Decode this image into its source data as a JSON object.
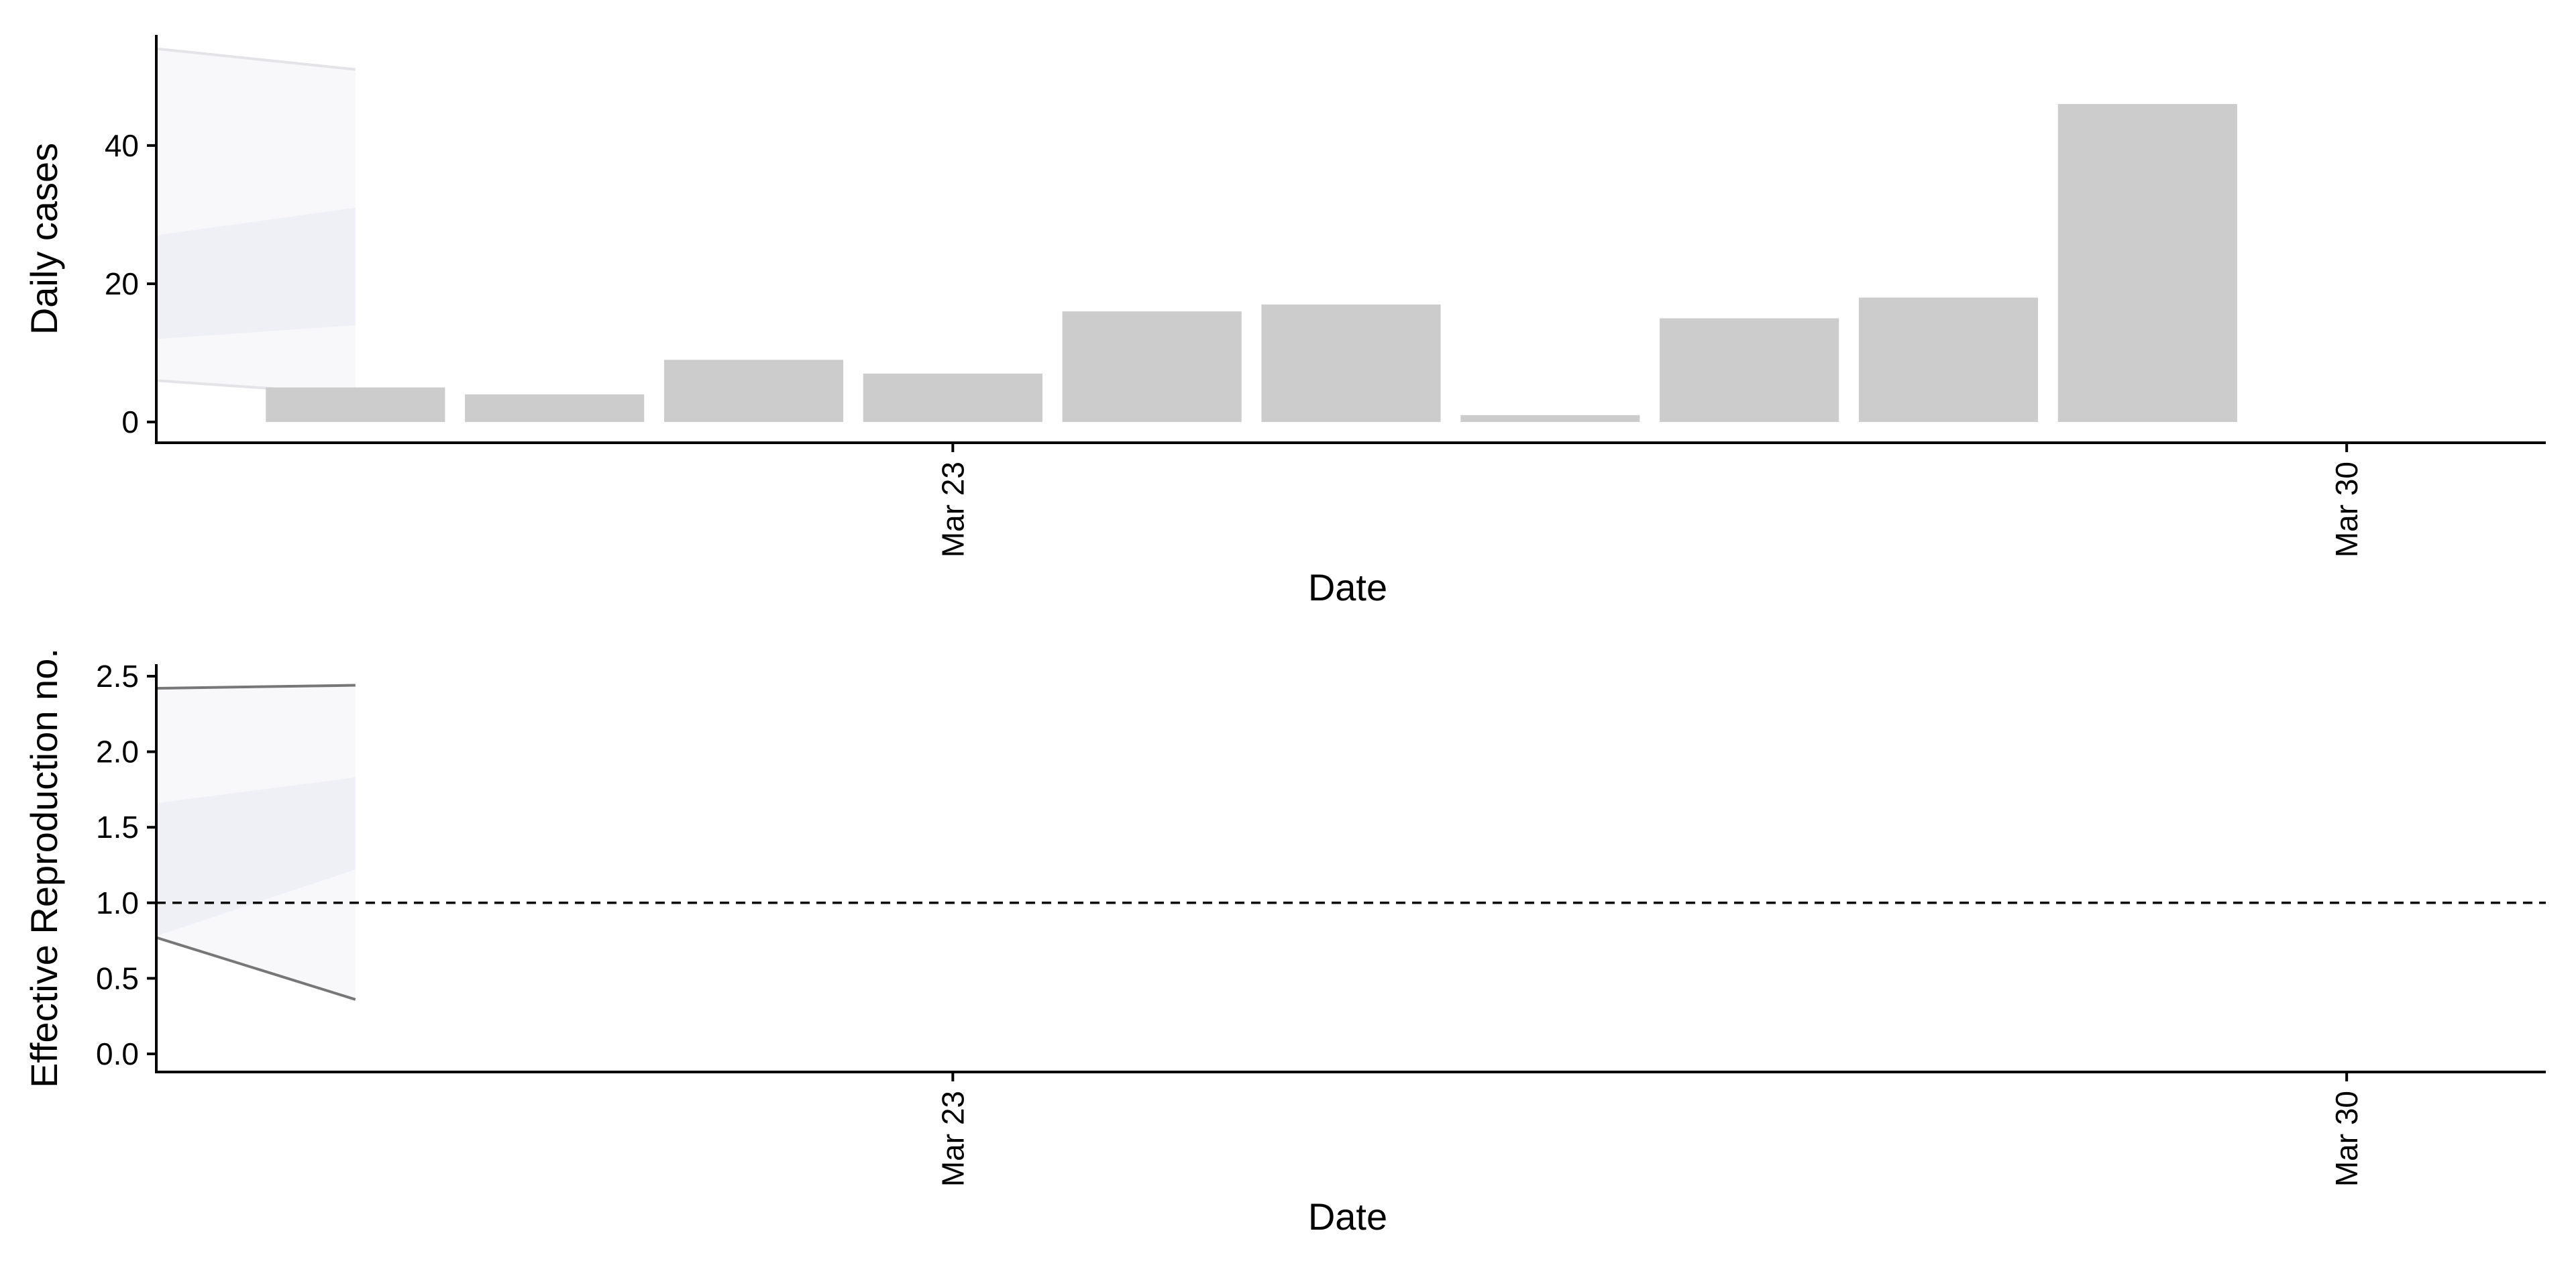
{
  "chart_data": [
    {
      "type": "bar",
      "xlabel": "Date",
      "ylabel": "Daily cases",
      "x_tick_labels": [
        {
          "date": "2020-03-23",
          "label": "Mar 23"
        },
        {
          "date": "2020-03-30",
          "label": "Mar 30"
        }
      ],
      "x_range": [
        "2020-03-19",
        "2020-03-31"
      ],
      "ylim": [
        -3,
        56
      ],
      "y_ticks": [
        0,
        20,
        40
      ],
      "y_tick_labels": [
        "0",
        "20",
        "40"
      ],
      "bars": [
        {
          "date": "2020-03-20",
          "value": 5
        },
        {
          "date": "2020-03-21",
          "value": 4
        },
        {
          "date": "2020-03-22",
          "value": 9
        },
        {
          "date": "2020-03-23",
          "value": 7
        },
        {
          "date": "2020-03-24",
          "value": 16
        },
        {
          "date": "2020-03-25",
          "value": 17
        },
        {
          "date": "2020-03-26",
          "value": 1
        },
        {
          "date": "2020-03-27",
          "value": 15
        },
        {
          "date": "2020-03-28",
          "value": 18
        },
        {
          "date": "2020-03-29",
          "value": 46
        }
      ],
      "bands": [
        {
          "x": [
            "2020-03-19",
            "2020-03-20"
          ],
          "lower": [
            6,
            4
          ],
          "upper": [
            54,
            51
          ]
        },
        {
          "x": [
            "2020-03-19",
            "2020-03-20"
          ],
          "lower": [
            12,
            14
          ],
          "upper": [
            27,
            31
          ]
        }
      ],
      "colors": {
        "bar": "#cccccc",
        "band_outer": "#f8f8fb",
        "band_inner": "#eef0f5",
        "band_outer_edge": "#e4e4e8"
      },
      "grid": false
    },
    {
      "type": "area",
      "xlabel": "Date",
      "ylabel": "Effective Reproduction no.",
      "x_tick_labels": [
        {
          "date": "2020-03-23",
          "label": "Mar 23"
        },
        {
          "date": "2020-03-30",
          "label": "Mar 30"
        }
      ],
      "x_range": [
        "2020-03-19",
        "2020-03-31"
      ],
      "ylim": [
        -0.12,
        2.58
      ],
      "y_ticks": [
        0,
        0.5,
        1,
        1.5,
        2,
        2.5
      ],
      "y_tick_labels": [
        "0.0",
        "0.5",
        "1.0",
        "1.5",
        "2.0",
        "2.5"
      ],
      "reference_line": 1,
      "bands": [
        {
          "x": [
            "2020-03-19",
            "2020-03-20"
          ],
          "lower": [
            0.77,
            0.36
          ],
          "upper": [
            2.42,
            2.44
          ]
        },
        {
          "x": [
            "2020-03-19",
            "2020-03-20"
          ],
          "lower": [
            0.78,
            1.22
          ],
          "upper": [
            1.66,
            1.83
          ]
        }
      ],
      "colors": {
        "band_outer": "#f8f8fb",
        "band_inner": "#eef0f5",
        "band_outer_edge": "#777777"
      },
      "grid": false
    }
  ]
}
